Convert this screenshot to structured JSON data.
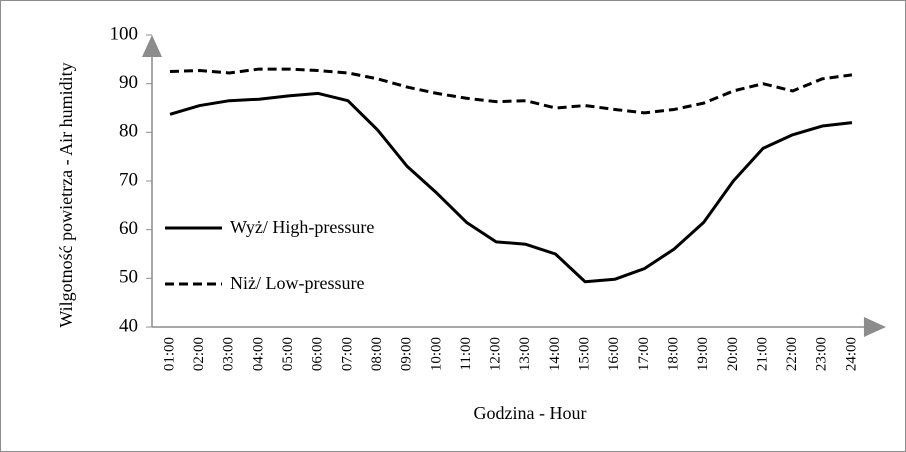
{
  "chart_data": {
    "type": "line",
    "x_label": "Godzina - Hour",
    "y_label": "Wilgotność powietrza - Air humidity",
    "categories": [
      "01:00",
      "02:00",
      "03:00",
      "04:00",
      "05:00",
      "06:00",
      "07:00",
      "08:00",
      "09:00",
      "10:00",
      "11:00",
      "12:00",
      "13:00",
      "14:00",
      "15:00",
      "16:00",
      "17:00",
      "18:00",
      "19:00",
      "20:00",
      "21:00",
      "22:00",
      "23:00",
      "24:00"
    ],
    "series": [
      {
        "name": "Wyż/ High-pressure",
        "color": "#000000",
        "line_style": "solid",
        "values": [
          83.7,
          85.5,
          86.5,
          86.8,
          87.5,
          88,
          86.5,
          80.5,
          73,
          67.5,
          61.5,
          57.5,
          57,
          55,
          49.3,
          49.8,
          52,
          56,
          61.5,
          70,
          76.7,
          79.5,
          81.3,
          82
        ]
      },
      {
        "name": "Niż/ Low-pressure",
        "color": "#000000",
        "line_style": "dashed",
        "values": [
          92.5,
          92.7,
          92.2,
          93,
          93,
          92.7,
          92.2,
          91,
          89.3,
          88,
          87,
          86.3,
          86.5,
          85,
          85.5,
          84.7,
          84,
          84.7,
          86,
          88.5,
          90,
          88.5,
          91,
          91.8
        ]
      }
    ],
    "ylim": [
      40,
      100
    ],
    "yticks": [
      40,
      50,
      60,
      70,
      80,
      90,
      100
    ],
    "grid": false,
    "legend": "left"
  }
}
